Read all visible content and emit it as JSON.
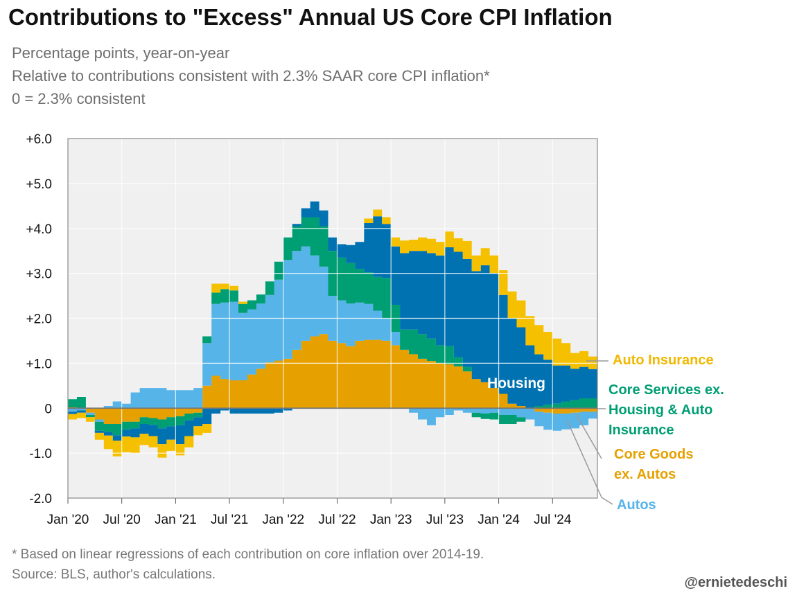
{
  "header": {
    "title": "Contributions to \"Excess\" Annual US Core CPI Inflation",
    "subtitle_lines": [
      "Percentage points, year-on-year",
      "Relative to contributions consistent with 2.3% SAAR core CPI inflation*",
      "0 = 2.3% consistent"
    ]
  },
  "footer": {
    "footnote": "* Based on linear regressions of each contribution on core inflation over 2014-19.",
    "source": "Source: BLS, author's calculations.",
    "credit": "@ernietedeschi"
  },
  "colors": {
    "core_goods_ex_autos": "#E6A000",
    "autos": "#56B4E9",
    "core_services": "#009E73",
    "housing": "#0072B2",
    "auto_insurance": "#F5C000",
    "plot_bg": "#F0F0F0",
    "grid": "#FFFFFF"
  },
  "chart_data": {
    "type": "area",
    "stacked": true,
    "x_tick_labels": [
      "Jan '20",
      "Jul '20",
      "Jan '21",
      "Jul '21",
      "Jan '22",
      "Jul '22",
      "Jan '23",
      "Jul '23",
      "Jan '24",
      "Jul '24"
    ],
    "y_tick_labels": [
      "+6.0",
      "+5.0",
      "+4.0",
      "+3.0",
      "+2.0",
      "+1.0",
      "0",
      "-1.0",
      "-2.0"
    ],
    "ylim": [
      -2.0,
      6.0
    ],
    "xlim": [
      "2020-01",
      "2024-12"
    ],
    "grid": true,
    "x": [
      "2020-01",
      "2020-02",
      "2020-03",
      "2020-04",
      "2020-05",
      "2020-06",
      "2020-07",
      "2020-08",
      "2020-09",
      "2020-10",
      "2020-11",
      "2020-12",
      "2021-01",
      "2021-02",
      "2021-03",
      "2021-04",
      "2021-05",
      "2021-06",
      "2021-07",
      "2021-08",
      "2021-09",
      "2021-10",
      "2021-11",
      "2021-12",
      "2022-01",
      "2022-02",
      "2022-03",
      "2022-04",
      "2022-05",
      "2022-06",
      "2022-07",
      "2022-08",
      "2022-09",
      "2022-10",
      "2022-11",
      "2022-12",
      "2023-01",
      "2023-02",
      "2023-03",
      "2023-04",
      "2023-05",
      "2023-06",
      "2023-07",
      "2023-08",
      "2023-09",
      "2023-10",
      "2023-11",
      "2023-12",
      "2024-01",
      "2024-02",
      "2024-03",
      "2024-04",
      "2024-05",
      "2024-06",
      "2024-07",
      "2024-08",
      "2024-09",
      "2024-10",
      "2024-11"
    ],
    "series": [
      {
        "name": "Core Goods ex. Autos",
        "color_key": "core_goods_ex_autos",
        "values": [
          0.02,
          0.0,
          -0.1,
          -0.25,
          -0.35,
          -0.35,
          -0.3,
          -0.3,
          -0.2,
          -0.22,
          -0.25,
          -0.2,
          -0.18,
          -0.12,
          -0.1,
          0.5,
          0.72,
          0.65,
          0.62,
          0.62,
          0.75,
          0.88,
          1.02,
          1.06,
          1.1,
          1.3,
          1.5,
          1.6,
          1.65,
          1.5,
          1.45,
          1.38,
          1.5,
          1.52,
          1.52,
          1.5,
          1.4,
          1.3,
          1.2,
          1.1,
          1.05,
          1.0,
          0.98,
          0.93,
          0.82,
          0.65,
          0.58,
          0.45,
          0.32,
          0.1,
          0.05,
          0.0,
          -0.08,
          -0.1,
          -0.12,
          -0.12,
          -0.1,
          -0.08,
          -0.08
        ]
      },
      {
        "name": "Autos",
        "color_key": "autos",
        "values": [
          -0.08,
          -0.05,
          -0.05,
          -0.05,
          0.05,
          0.15,
          0.1,
          0.35,
          0.45,
          0.45,
          0.45,
          0.4,
          0.4,
          0.4,
          0.45,
          0.95,
          1.6,
          1.7,
          1.75,
          1.5,
          1.45,
          1.45,
          1.5,
          1.8,
          2.2,
          2.2,
          2.1,
          1.8,
          1.5,
          1.0,
          0.95,
          0.95,
          0.85,
          0.8,
          0.65,
          0.5,
          0.3,
          0.0,
          -0.1,
          -0.25,
          -0.38,
          -0.2,
          -0.15,
          -0.05,
          -0.1,
          -0.1,
          -0.12,
          -0.1,
          -0.15,
          -0.15,
          -0.2,
          -0.25,
          -0.32,
          -0.38,
          -0.38,
          -0.35,
          -0.35,
          -0.3,
          -0.15
        ]
      },
      {
        "name": "Core Services ex. Housing & Auto Insurance",
        "color_key": "core_services",
        "values": [
          0.18,
          0.25,
          -0.05,
          -0.2,
          -0.18,
          -0.25,
          -0.18,
          -0.15,
          -0.15,
          -0.15,
          -0.2,
          -0.2,
          -0.2,
          -0.15,
          -0.1,
          0.15,
          0.25,
          0.3,
          0.25,
          0.2,
          0.2,
          0.2,
          0.3,
          0.4,
          0.5,
          0.55,
          0.65,
          0.85,
          0.9,
          1.0,
          0.95,
          0.9,
          0.75,
          0.7,
          0.75,
          0.9,
          0.6,
          0.45,
          0.55,
          0.55,
          0.5,
          0.4,
          0.4,
          0.2,
          0.1,
          -0.1,
          -0.12,
          -0.15,
          -0.2,
          -0.2,
          -0.1,
          0.0,
          0.05,
          0.08,
          0.1,
          0.15,
          0.18,
          0.22,
          0.22
        ]
      },
      {
        "name": "Housing",
        "color_key": "housing",
        "values": [
          -0.05,
          -0.05,
          0.0,
          -0.05,
          -0.08,
          -0.12,
          -0.15,
          -0.2,
          -0.22,
          -0.25,
          -0.35,
          -0.3,
          -0.42,
          -0.35,
          -0.2,
          -0.35,
          -0.12,
          -0.05,
          -0.12,
          -0.12,
          -0.12,
          -0.12,
          -0.12,
          -0.1,
          -0.05,
          0.05,
          0.2,
          0.35,
          0.35,
          0.3,
          0.3,
          0.4,
          0.6,
          1.1,
          1.35,
          1.2,
          1.3,
          1.7,
          1.75,
          1.85,
          1.9,
          2.0,
          2.2,
          2.35,
          2.4,
          2.4,
          2.6,
          2.55,
          2.2,
          1.9,
          1.75,
          1.4,
          1.15,
          1.0,
          0.85,
          0.8,
          0.7,
          0.7,
          0.65
        ]
      },
      {
        "name": "Auto Insurance",
        "color_key": "auto_insurance",
        "values": [
          -0.12,
          -0.12,
          -0.1,
          -0.15,
          -0.3,
          -0.35,
          -0.35,
          -0.35,
          -0.25,
          -0.25,
          -0.3,
          -0.25,
          -0.25,
          -0.25,
          -0.2,
          -0.2,
          0.2,
          0.12,
          0.1,
          0.05,
          0.0,
          0.0,
          0.0,
          0.0,
          0.0,
          0.0,
          0.0,
          0.0,
          0.0,
          0.0,
          0.0,
          0.0,
          0.0,
          0.1,
          0.15,
          0.15,
          0.2,
          0.28,
          0.25,
          0.3,
          0.32,
          0.3,
          0.35,
          0.3,
          0.4,
          0.35,
          0.38,
          0.4,
          0.55,
          0.6,
          0.6,
          0.65,
          0.65,
          0.62,
          0.6,
          0.5,
          0.35,
          0.35,
          0.28
        ]
      }
    ],
    "annotations": {
      "inside_label": "Housing",
      "legend": [
        {
          "series": "Auto Insurance",
          "lines": [
            "Auto Insurance"
          ]
        },
        {
          "series": "Core Services ex. Housing & Auto Insurance",
          "lines": [
            "Core Services ex.",
            "Housing & Auto",
            "Insurance"
          ]
        },
        {
          "series": "Core Goods ex. Autos",
          "lines": [
            "Core Goods",
            "ex. Autos"
          ]
        },
        {
          "series": "Autos",
          "lines": [
            "Autos"
          ]
        }
      ]
    }
  }
}
